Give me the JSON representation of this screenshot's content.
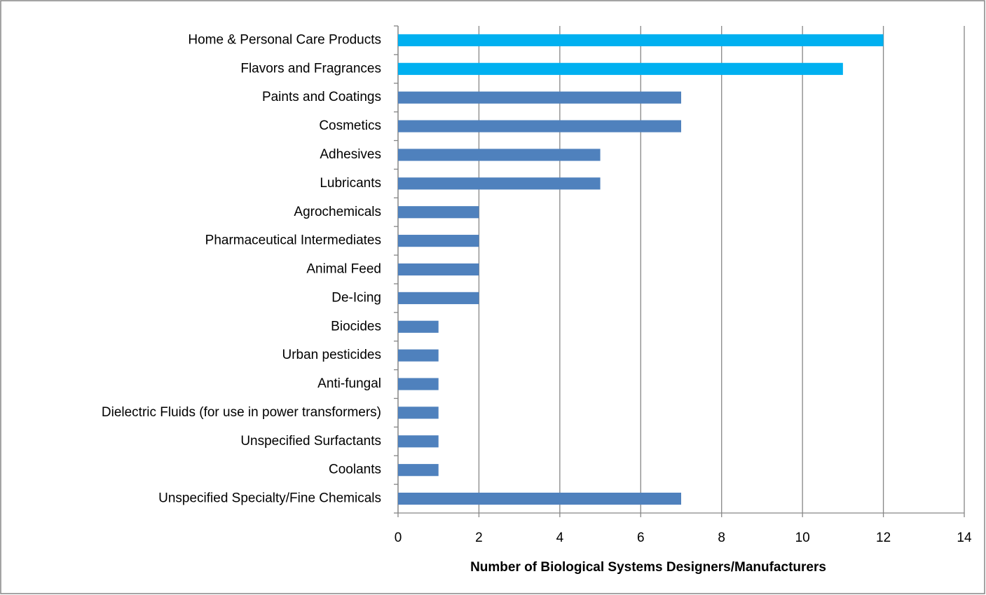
{
  "chart_data": {
    "type": "barh",
    "categories": [
      "Home & Personal Care Products",
      "Flavors and Fragrances",
      "Paints and Coatings",
      "Cosmetics",
      "Adhesives",
      "Lubricants",
      "Agrochemicals",
      "Pharmaceutical Intermediates",
      "Animal Feed",
      "De-Icing",
      "Biocides",
      "Urban pesticides",
      "Anti-fungal",
      "Dielectric Fluids (for use in power transformers)",
      "Unspecified Surfactants",
      "Coolants",
      "Unspecified Specialty/Fine Chemicals"
    ],
    "values": [
      12,
      11,
      7,
      7,
      5,
      5,
      2,
      2,
      2,
      2,
      1,
      1,
      1,
      1,
      1,
      1,
      7
    ],
    "colors": [
      "#00b0f0",
      "#00b0f0",
      "#4f81bd",
      "#4f81bd",
      "#4f81bd",
      "#4f81bd",
      "#4f81bd",
      "#4f81bd",
      "#4f81bd",
      "#4f81bd",
      "#4f81bd",
      "#4f81bd",
      "#4f81bd",
      "#4f81bd",
      "#4f81bd",
      "#4f81bd",
      "#4f81bd"
    ],
    "xlabel": "Number of Biological Systems Designers/Manufacturers",
    "xlim": [
      0,
      14
    ],
    "xticks": [
      0,
      2,
      4,
      6,
      8,
      10,
      12,
      14
    ],
    "grid": true
  }
}
